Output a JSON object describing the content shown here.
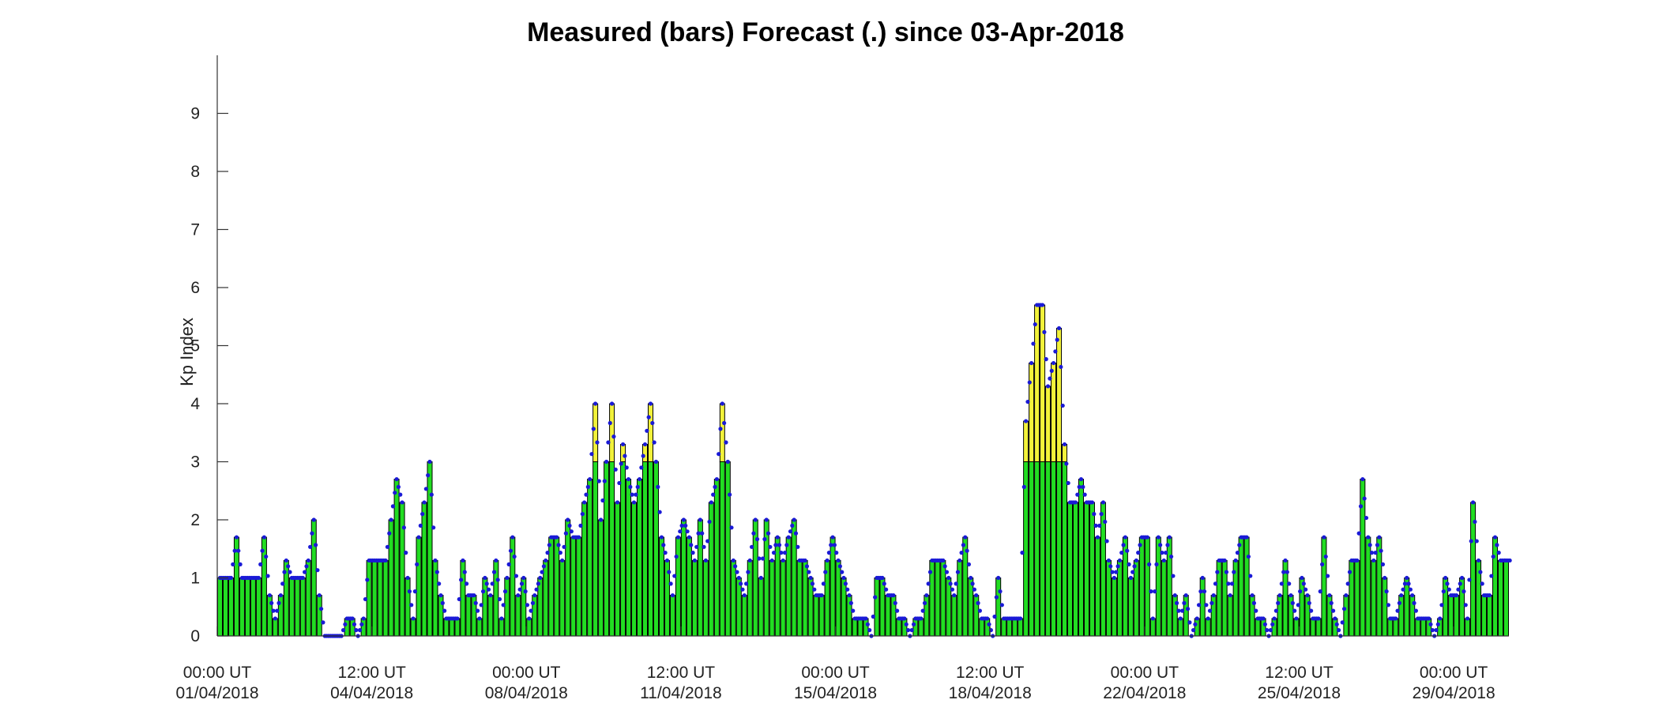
{
  "chart_data": {
    "type": "bar",
    "title": "Measured (bars) Forecast (.) since 03-Apr-2018",
    "xlabel": "",
    "ylabel": "Kp Index",
    "ylim": [
      0,
      10
    ],
    "yticks": [
      0,
      1,
      2,
      3,
      4,
      5,
      6,
      7,
      8,
      9
    ],
    "grid": false,
    "x_tick_labels": [
      {
        "line1": "00:00 UT",
        "line2": "01/04/2018"
      },
      {
        "line1": "12:00 UT",
        "line2": "04/04/2018"
      },
      {
        "line1": "00:00 UT",
        "line2": "08/04/2018"
      },
      {
        "line1": "12:00 UT",
        "line2": "11/04/2018"
      },
      {
        "line1": "00:00 UT",
        "line2": "15/04/2018"
      },
      {
        "line1": "12:00 UT",
        "line2": "18/04/2018"
      },
      {
        "line1": "00:00 UT",
        "line2": "22/04/2018"
      },
      {
        "line1": "12:00 UT",
        "line2": "25/04/2018"
      },
      {
        "line1": "00:00 UT",
        "line2": "29/04/2018"
      }
    ],
    "x_tick_interval_bars": 28,
    "bar_interval_hours": 3,
    "storm_threshold": 3,
    "colors": {
      "quiet": "#22dd22",
      "storm": "#f2f23a",
      "forecast": "#1a1ad6",
      "edge": "#000000"
    },
    "measured_kp": [
      1,
      1,
      1,
      1.7,
      1,
      1,
      1,
      1,
      1.7,
      0.7,
      0.3,
      0.7,
      1.3,
      1,
      1,
      1,
      1.3,
      2,
      0.7,
      0,
      0,
      0,
      0,
      0.3,
      0.3,
      0,
      0.3,
      1.3,
      1.3,
      1.3,
      1.3,
      2,
      2.7,
      2.3,
      1,
      0.3,
      1.7,
      2.3,
      3,
      1.3,
      0.7,
      0.3,
      0.3,
      0.3,
      1.3,
      0.7,
      0.7,
      0.3,
      1,
      0.7,
      1.3,
      0.3,
      1,
      1.7,
      0.7,
      1,
      0.3,
      0.7,
      1,
      1.3,
      1.7,
      1.7,
      1.3,
      2,
      1.7,
      1.7,
      2.3,
      2.7,
      4,
      2,
      3,
      4,
      2.3,
      3.3,
      2.7,
      2.3,
      2.7,
      3.3,
      4,
      3,
      1.7,
      1.3,
      0.7,
      1.7,
      2,
      1.7,
      1.3,
      2,
      1.3,
      2.3,
      2.7,
      4,
      3,
      1.3,
      1,
      0.7,
      1.3,
      2,
      1,
      2,
      1.3,
      1.7,
      1.3,
      1.7,
      2,
      1.3,
      1.3,
      1,
      0.7,
      0.7,
      1.3,
      1.7,
      1.3,
      1,
      0.7,
      0.3,
      0.3,
      0.3,
      0,
      1,
      1,
      0.7,
      0.7,
      0.3,
      0.3,
      0,
      0.3,
      0.3,
      0.7,
      1.3,
      1.3,
      1.3,
      1,
      0.7,
      1.3,
      1.7,
      1,
      0.7,
      0.3,
      0.3,
      0,
      1,
      0.3,
      0.3,
      0.3,
      0.3,
      3.7,
      4.7,
      5.7,
      5.7,
      4.3,
      4.7,
      5.3,
      3.3,
      2.3,
      2.3,
      2.7,
      2.3,
      2.3,
      1.7,
      2.3,
      1.3,
      1,
      1.3,
      1.7,
      1,
      1.3,
      1.7,
      1.7,
      0.3,
      1.7,
      1.3,
      1.7,
      0.7,
      0.3,
      0.7,
      0,
      0.3,
      1,
      0.3,
      0.7,
      1.3,
      1.3,
      0.7,
      1.3,
      1.7,
      1.7,
      0.7,
      0.3,
      0.3,
      0,
      0.3,
      0.7,
      1.3,
      0.7,
      0.3,
      1,
      0.7,
      0.3,
      0.3,
      1.7,
      0.7,
      0.3,
      0,
      0.7,
      1.3,
      1.3,
      2.7,
      1.7,
      1.3,
      1.7,
      1,
      0.3,
      0.3,
      0.7,
      1,
      0.7,
      0.3,
      0.3,
      0.3,
      0,
      0.3,
      1,
      0.7,
      0.7,
      1,
      0.3,
      2.3,
      1.3,
      0.7,
      0.7,
      1.7,
      1.3,
      1.3
    ]
  }
}
